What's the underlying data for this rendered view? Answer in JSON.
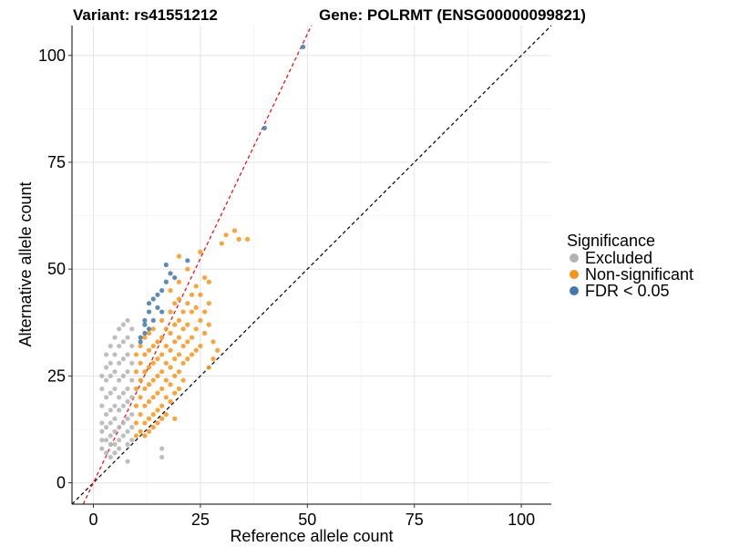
{
  "header": {
    "variant_title": "Variant: rs41551212",
    "gene_title": "Gene: POLRMT (ENSG00000099821)"
  },
  "chart_data": {
    "type": "scatter",
    "xlabel": "Reference allele count",
    "ylabel": "Alternative allele count",
    "xlim": [
      -5,
      107
    ],
    "ylim": [
      -5,
      107
    ],
    "x_ticks": [
      "0",
      "25",
      "50",
      "75",
      "100"
    ],
    "y_ticks": [
      "0",
      "25",
      "50",
      "75",
      "100"
    ],
    "grid": true,
    "legend": {
      "title": "Significance",
      "placement": "right",
      "entries": [
        {
          "label": "Excluded",
          "color": "#b3b3b3"
        },
        {
          "label": "Non-significant",
          "color": "#f7941d"
        },
        {
          "label": "FDR < 0.05",
          "color": "#4477aa"
        }
      ]
    },
    "reference_lines": [
      {
        "slope": 1,
        "intercept": 0,
        "color": "#000000",
        "style": "dashed"
      },
      {
        "slope": 2.1,
        "intercept": 0,
        "color": "#ff0000",
        "style": "dashed"
      }
    ],
    "series": [
      {
        "name": "Excluded",
        "color": "#b3b3b3",
        "points": [
          [
            2,
            25
          ],
          [
            2,
            22
          ],
          [
            2,
            18
          ],
          [
            2,
            14
          ],
          [
            2,
            12
          ],
          [
            2,
            10
          ],
          [
            2,
            8
          ],
          [
            3,
            30
          ],
          [
            3,
            27
          ],
          [
            3,
            24
          ],
          [
            3,
            20
          ],
          [
            3,
            16
          ],
          [
            3,
            13
          ],
          [
            3,
            10
          ],
          [
            3,
            7
          ],
          [
            4,
            32
          ],
          [
            4,
            28
          ],
          [
            4,
            25
          ],
          [
            4,
            21
          ],
          [
            4,
            17
          ],
          [
            4,
            14
          ],
          [
            4,
            11
          ],
          [
            4,
            9
          ],
          [
            4,
            6
          ],
          [
            5,
            34
          ],
          [
            5,
            30
          ],
          [
            5,
            26
          ],
          [
            5,
            22
          ],
          [
            5,
            18
          ],
          [
            5,
            15
          ],
          [
            5,
            12
          ],
          [
            5,
            9
          ],
          [
            5,
            7
          ],
          [
            6,
            36
          ],
          [
            6,
            32
          ],
          [
            6,
            28
          ],
          [
            6,
            24
          ],
          [
            6,
            20
          ],
          [
            6,
            17
          ],
          [
            6,
            13
          ],
          [
            6,
            10
          ],
          [
            6,
            8
          ],
          [
            7,
            37
          ],
          [
            7,
            33
          ],
          [
            7,
            29
          ],
          [
            7,
            25
          ],
          [
            7,
            21
          ],
          [
            7,
            18
          ],
          [
            7,
            14
          ],
          [
            7,
            11
          ],
          [
            8,
            38
          ],
          [
            8,
            34
          ],
          [
            8,
            30
          ],
          [
            8,
            26
          ],
          [
            8,
            22
          ],
          [
            8,
            19
          ],
          [
            8,
            15
          ],
          [
            8,
            12
          ],
          [
            8,
            9
          ],
          [
            8,
            5
          ],
          [
            9,
            36
          ],
          [
            9,
            32
          ],
          [
            9,
            28
          ],
          [
            9,
            24
          ],
          [
            9,
            20
          ],
          [
            9,
            16
          ],
          [
            9,
            13
          ],
          [
            9,
            10
          ],
          [
            16,
            6
          ],
          [
            16,
            8
          ]
        ]
      },
      {
        "name": "Non-significant",
        "color": "#f7941d",
        "points": [
          [
            10,
            30
          ],
          [
            10,
            26
          ],
          [
            10,
            22
          ],
          [
            10,
            18
          ],
          [
            10,
            14
          ],
          [
            10,
            11
          ],
          [
            11,
            32
          ],
          [
            11,
            28
          ],
          [
            11,
            24
          ],
          [
            11,
            20
          ],
          [
            11,
            16
          ],
          [
            11,
            12
          ],
          [
            12,
            34
          ],
          [
            12,
            30
          ],
          [
            12,
            26
          ],
          [
            12,
            22
          ],
          [
            12,
            18
          ],
          [
            12,
            14
          ],
          [
            12,
            11
          ],
          [
            13,
            35
          ],
          [
            13,
            31
          ],
          [
            13,
            27
          ],
          [
            13,
            23
          ],
          [
            13,
            19
          ],
          [
            13,
            15
          ],
          [
            13,
            12
          ],
          [
            14,
            36
          ],
          [
            14,
            32
          ],
          [
            14,
            28
          ],
          [
            14,
            24
          ],
          [
            14,
            20
          ],
          [
            14,
            16
          ],
          [
            14,
            13
          ],
          [
            15,
            33
          ],
          [
            15,
            29
          ],
          [
            15,
            25
          ],
          [
            15,
            21
          ],
          [
            15,
            17
          ],
          [
            15,
            14
          ],
          [
            16,
            38
          ],
          [
            16,
            34
          ],
          [
            16,
            30
          ],
          [
            16,
            26
          ],
          [
            16,
            22
          ],
          [
            16,
            18
          ],
          [
            16,
            15
          ],
          [
            17,
            36
          ],
          [
            17,
            32
          ],
          [
            17,
            28
          ],
          [
            17,
            24
          ],
          [
            17,
            20
          ],
          [
            17,
            16
          ],
          [
            18,
            45
          ],
          [
            18,
            40
          ],
          [
            18,
            35
          ],
          [
            18,
            31
          ],
          [
            18,
            27
          ],
          [
            18,
            23
          ],
          [
            18,
            19
          ],
          [
            19,
            42
          ],
          [
            19,
            37
          ],
          [
            19,
            33
          ],
          [
            19,
            29
          ],
          [
            19,
            25
          ],
          [
            19,
            21
          ],
          [
            19,
            15
          ],
          [
            20,
            47
          ],
          [
            20,
            43
          ],
          [
            20,
            38
          ],
          [
            20,
            34
          ],
          [
            20,
            30
          ],
          [
            20,
            26
          ],
          [
            20,
            22
          ],
          [
            21,
            40
          ],
          [
            21,
            36
          ],
          [
            21,
            32
          ],
          [
            21,
            28
          ],
          [
            21,
            24
          ],
          [
            22,
            42
          ],
          [
            22,
            37
          ],
          [
            22,
            33
          ],
          [
            22,
            29
          ],
          [
            23,
            44
          ],
          [
            23,
            40
          ],
          [
            23,
            34
          ],
          [
            23,
            30
          ],
          [
            24,
            46
          ],
          [
            24,
            41
          ],
          [
            24,
            36
          ],
          [
            24,
            31
          ],
          [
            25,
            44
          ],
          [
            25,
            38
          ],
          [
            25,
            32
          ],
          [
            26,
            48
          ],
          [
            26,
            40
          ],
          [
            26,
            35
          ],
          [
            27,
            47
          ],
          [
            27,
            42
          ],
          [
            27,
            37
          ],
          [
            28,
            33
          ],
          [
            28,
            29
          ],
          [
            29,
            31
          ],
          [
            30,
            56
          ],
          [
            31,
            58
          ],
          [
            33,
            59
          ],
          [
            34,
            57
          ],
          [
            36,
            57
          ],
          [
            20,
            53
          ],
          [
            22,
            50
          ],
          [
            25,
            54
          ],
          [
            27,
            27
          ]
        ]
      },
      {
        "name": "FDR < 0.05",
        "color": "#4477aa",
        "points": [
          [
            11,
            33
          ],
          [
            11,
            34
          ],
          [
            12,
            35
          ],
          [
            12,
            37
          ],
          [
            12,
            38
          ],
          [
            13,
            36
          ],
          [
            13,
            40
          ],
          [
            13,
            42
          ],
          [
            14,
            38
          ],
          [
            14,
            43
          ],
          [
            15,
            41
          ],
          [
            15,
            44
          ],
          [
            16,
            45
          ],
          [
            16,
            40
          ],
          [
            17,
            47
          ],
          [
            17,
            51
          ],
          [
            18,
            49
          ],
          [
            19,
            48
          ],
          [
            22,
            52
          ],
          [
            40,
            83
          ],
          [
            49,
            102
          ]
        ]
      }
    ]
  }
}
